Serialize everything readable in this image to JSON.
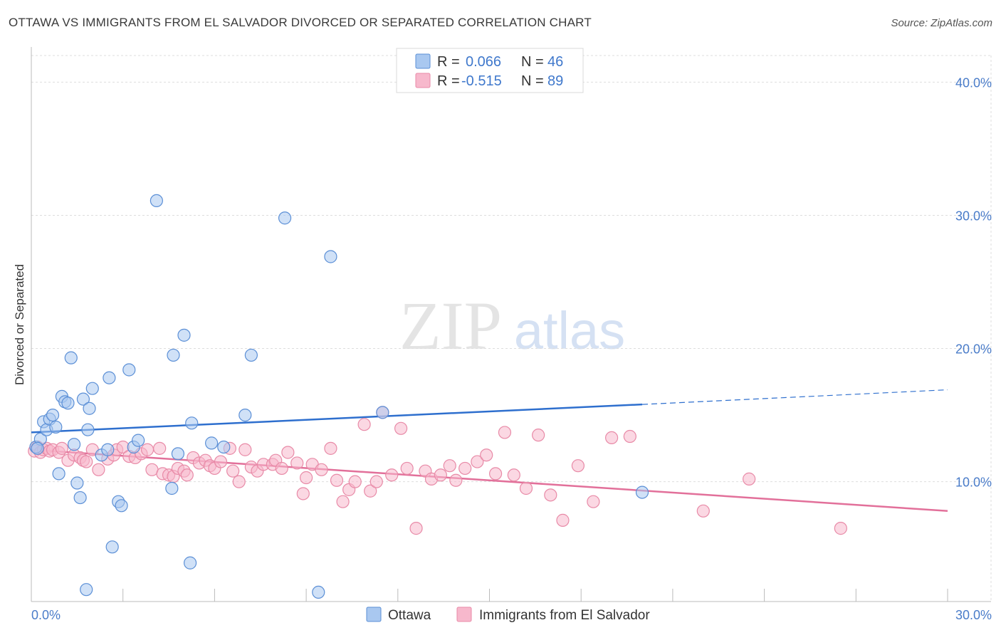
{
  "header": {
    "title": "OTTAWA VS IMMIGRANTS FROM EL SALVADOR DIVORCED OR SEPARATED CORRELATION CHART",
    "source": "Source: ZipAtlas.com"
  },
  "watermark": {
    "zip": "ZIP",
    "atlas": "atlas"
  },
  "colors": {
    "ottawa_fill": "#a9c8f0",
    "ottawa_stroke": "#5b8fd6",
    "ottawa_line": "#2e6fce",
    "elsal_fill": "#f7b8cc",
    "elsal_stroke": "#e88aa7",
    "elsal_line": "#e2709a",
    "tick_text": "#4a7cc9",
    "grid": "#dddddd"
  },
  "chart_data": {
    "type": "scatter",
    "title": "OTTAWA VS IMMIGRANTS FROM EL SALVADOR DIVORCED OR SEPARATED CORRELATION CHART",
    "xlabel": "",
    "ylabel": "Divorced or Separated",
    "xlim": [
      0,
      30
    ],
    "ylim": [
      1,
      42
    ],
    "x_tick_labels": [
      "0.0%",
      "30.0%"
    ],
    "y_ticks": [
      10,
      20,
      30,
      40
    ],
    "y_tick_labels": [
      "10.0%",
      "20.0%",
      "30.0%",
      "40.0%"
    ],
    "grid": true,
    "legend_position": "top-center",
    "stats": [
      {
        "r_label": "R =",
        "r_value": "0.066",
        "n_label": "N =",
        "n_value": "46"
      },
      {
        "r_label": "R =",
        "r_value": "-0.515",
        "n_label": "N =",
        "n_value": "89"
      }
    ],
    "series": [
      {
        "name": "Ottawa",
        "trend": {
          "x": [
            0,
            20,
            30
          ],
          "y": [
            13.7,
            15.8,
            16.9
          ],
          "solid_until": 20
        },
        "points": [
          [
            0.15,
            12.6
          ],
          [
            0.3,
            13.2
          ],
          [
            0.4,
            14.5
          ],
          [
            0.5,
            13.9
          ],
          [
            0.6,
            14.7
          ],
          [
            0.7,
            15.0
          ],
          [
            0.8,
            14.1
          ],
          [
            0.9,
            10.6
          ],
          [
            1.0,
            16.4
          ],
          [
            1.1,
            16.0
          ],
          [
            1.2,
            15.9
          ],
          [
            1.3,
            19.3
          ],
          [
            1.4,
            12.8
          ],
          [
            1.5,
            9.9
          ],
          [
            1.6,
            8.8
          ],
          [
            1.7,
            16.2
          ],
          [
            1.8,
            1.9
          ],
          [
            1.85,
            13.9
          ],
          [
            1.9,
            15.5
          ],
          [
            2.0,
            17.0
          ],
          [
            2.3,
            12.0
          ],
          [
            2.5,
            12.4
          ],
          [
            2.55,
            17.8
          ],
          [
            2.65,
            5.1
          ],
          [
            2.85,
            8.5
          ],
          [
            2.95,
            8.2
          ],
          [
            3.2,
            18.4
          ],
          [
            3.35,
            12.6
          ],
          [
            3.5,
            13.1
          ],
          [
            4.1,
            31.1
          ],
          [
            4.6,
            9.5
          ],
          [
            4.65,
            19.5
          ],
          [
            4.8,
            12.1
          ],
          [
            5.0,
            21.0
          ],
          [
            5.2,
            3.9
          ],
          [
            5.25,
            14.4
          ],
          [
            5.9,
            12.9
          ],
          [
            6.3,
            12.6
          ],
          [
            7.0,
            15.0
          ],
          [
            7.2,
            19.5
          ],
          [
            8.3,
            29.8
          ],
          [
            9.4,
            1.7
          ],
          [
            9.8,
            26.9
          ],
          [
            11.5,
            15.2
          ],
          [
            20.0,
            9.2
          ],
          [
            0.2,
            12.5
          ]
        ]
      },
      {
        "name": "Immigrants from El Salvador",
        "trend": {
          "x": [
            0,
            30
          ],
          "y": [
            12.4,
            7.8
          ],
          "solid_until": 30
        },
        "points": [
          [
            0.1,
            12.3
          ],
          [
            0.2,
            12.6
          ],
          [
            0.3,
            12.2
          ],
          [
            0.4,
            12.4
          ],
          [
            0.5,
            12.5
          ],
          [
            0.6,
            12.3
          ],
          [
            0.7,
            12.4
          ],
          [
            0.9,
            12.2
          ],
          [
            1.0,
            12.5
          ],
          [
            1.2,
            11.6
          ],
          [
            1.4,
            12.0
          ],
          [
            1.6,
            11.8
          ],
          [
            1.7,
            11.6
          ],
          [
            1.8,
            11.5
          ],
          [
            2.0,
            12.4
          ],
          [
            2.2,
            10.9
          ],
          [
            2.5,
            11.7
          ],
          [
            2.7,
            12.0
          ],
          [
            2.8,
            12.4
          ],
          [
            3.0,
            12.6
          ],
          [
            3.2,
            11.9
          ],
          [
            3.4,
            11.8
          ],
          [
            3.6,
            12.1
          ],
          [
            3.8,
            12.4
          ],
          [
            3.95,
            10.9
          ],
          [
            4.2,
            12.5
          ],
          [
            4.3,
            10.6
          ],
          [
            4.5,
            10.5
          ],
          [
            4.65,
            10.4
          ],
          [
            4.8,
            11.0
          ],
          [
            5.0,
            10.8
          ],
          [
            5.1,
            10.5
          ],
          [
            5.3,
            11.8
          ],
          [
            5.5,
            11.4
          ],
          [
            5.7,
            11.6
          ],
          [
            5.85,
            11.2
          ],
          [
            6.0,
            11.0
          ],
          [
            6.2,
            11.5
          ],
          [
            6.5,
            12.5
          ],
          [
            6.6,
            10.8
          ],
          [
            6.8,
            10.0
          ],
          [
            7.0,
            12.4
          ],
          [
            7.2,
            11.1
          ],
          [
            7.4,
            10.8
          ],
          [
            7.6,
            11.3
          ],
          [
            7.9,
            11.3
          ],
          [
            8.0,
            11.6
          ],
          [
            8.2,
            11.0
          ],
          [
            8.4,
            12.2
          ],
          [
            8.7,
            11.4
          ],
          [
            8.9,
            9.1
          ],
          [
            9.0,
            10.3
          ],
          [
            9.2,
            11.3
          ],
          [
            9.5,
            10.9
          ],
          [
            9.8,
            12.5
          ],
          [
            10.0,
            10.1
          ],
          [
            10.2,
            8.5
          ],
          [
            10.4,
            9.4
          ],
          [
            10.6,
            10.0
          ],
          [
            10.9,
            14.3
          ],
          [
            11.1,
            9.3
          ],
          [
            11.3,
            10.0
          ],
          [
            11.5,
            15.2
          ],
          [
            11.8,
            10.5
          ],
          [
            12.1,
            14.0
          ],
          [
            12.3,
            11.0
          ],
          [
            12.6,
            6.5
          ],
          [
            12.9,
            10.8
          ],
          [
            13.1,
            10.2
          ],
          [
            13.4,
            10.5
          ],
          [
            13.7,
            11.2
          ],
          [
            13.9,
            10.1
          ],
          [
            14.2,
            11.0
          ],
          [
            14.6,
            11.5
          ],
          [
            14.9,
            12.0
          ],
          [
            15.2,
            10.6
          ],
          [
            15.5,
            13.7
          ],
          [
            15.8,
            10.5
          ],
          [
            16.2,
            9.5
          ],
          [
            16.6,
            13.5
          ],
          [
            17.0,
            9.0
          ],
          [
            17.4,
            7.1
          ],
          [
            17.9,
            11.2
          ],
          [
            18.4,
            8.5
          ],
          [
            19.0,
            13.3
          ],
          [
            19.6,
            13.4
          ],
          [
            22.0,
            7.8
          ],
          [
            23.5,
            10.2
          ],
          [
            26.5,
            6.5
          ]
        ]
      }
    ]
  },
  "bottom_legend": [
    {
      "label": "Ottawa"
    },
    {
      "label": "Immigrants from El Salvador"
    }
  ]
}
